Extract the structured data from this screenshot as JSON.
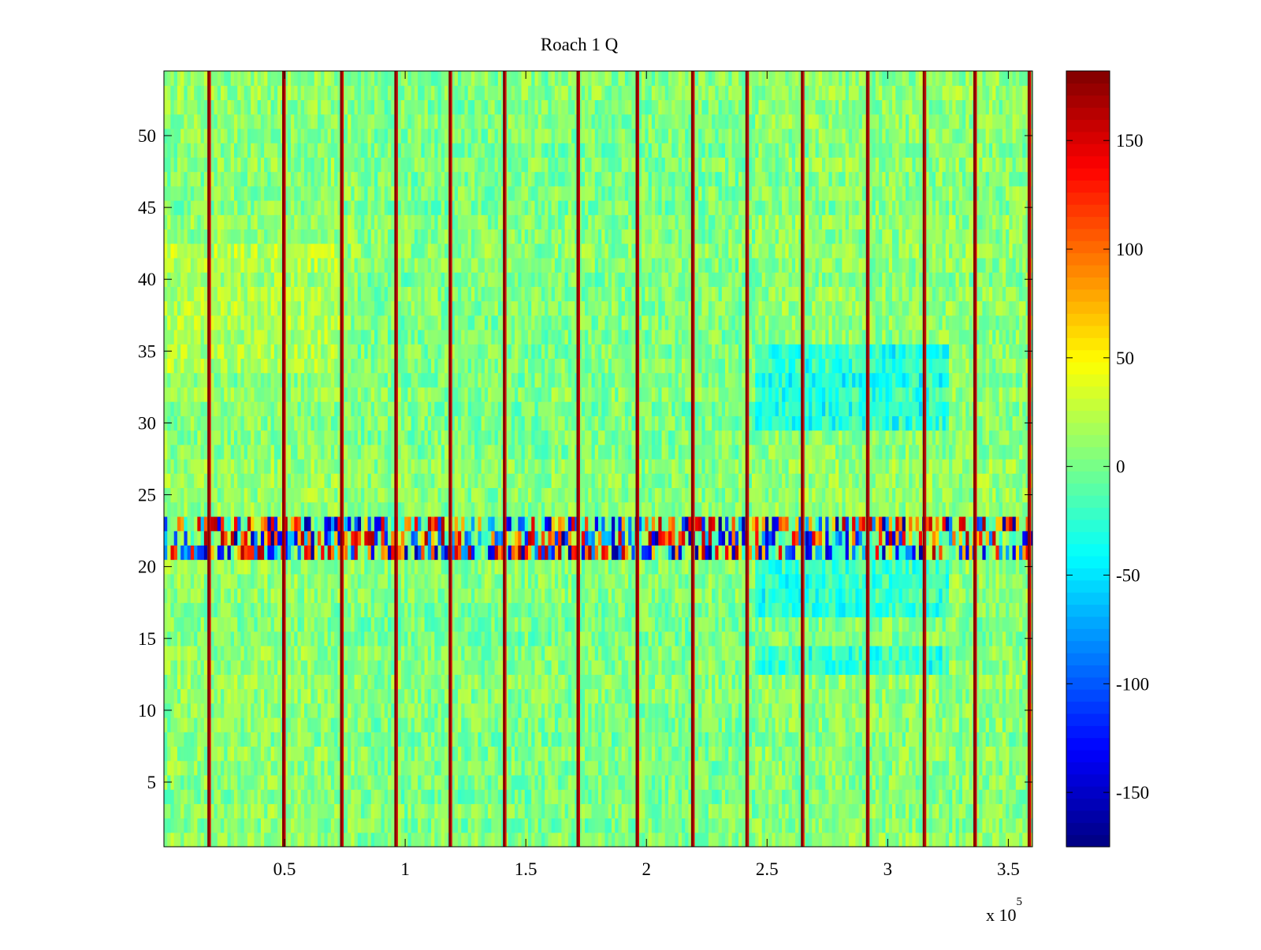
{
  "chart_data": {
    "type": "heatmap",
    "title": "Roach 1 Q",
    "xlabel": "",
    "ylabel": "",
    "x_exponent_label": "x 10",
    "x_exponent_power": "5",
    "xlim": [
      0,
      360000
    ],
    "ylim": [
      0.5,
      54.5
    ],
    "x_ticks": [
      0.5,
      1,
      1.5,
      2,
      2.5,
      3,
      3.5
    ],
    "x_tick_labels": [
      "0.5",
      "1",
      "1.5",
      "2",
      "2.5",
      "3",
      "3.5"
    ],
    "y_ticks": [
      5,
      10,
      15,
      20,
      25,
      30,
      35,
      40,
      45,
      50
    ],
    "y_tick_labels": [
      "5",
      "10",
      "15",
      "20",
      "25",
      "30",
      "35",
      "40",
      "45",
      "50"
    ],
    "rows": 54,
    "clim": [
      -175,
      182
    ],
    "colormap": "jet",
    "colorbar": {
      "ticks": [
        -150,
        -100,
        -50,
        0,
        50,
        100,
        150
      ],
      "tick_labels": [
        "-150",
        "-100",
        "-50",
        "0",
        "50",
        "100",
        "150"
      ]
    },
    "vertical_spike_lines_x": [
      18500,
      49500,
      73500,
      96000,
      118500,
      141000,
      171500,
      196000,
      219000,
      241500,
      264500,
      291500,
      315000,
      336000,
      358500
    ],
    "high_variance_rows": [
      21,
      22,
      23
    ],
    "low_value_region": {
      "x_range": [
        245000,
        325000
      ],
      "rows": [
        [
          17,
          20
        ],
        [
          30,
          35
        ],
        [
          13,
          14
        ]
      ]
    },
    "high_value_region": {
      "x_range": [
        0,
        75000
      ],
      "rows": [
        [
          34,
          42
        ]
      ]
    }
  }
}
